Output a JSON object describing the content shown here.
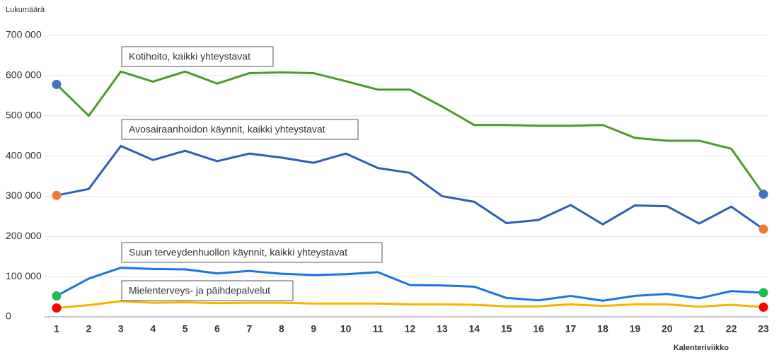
{
  "chart_data": {
    "type": "line",
    "y_label": "Lukumäärä",
    "x_label": "Kalenteriviikko",
    "x": [
      1,
      2,
      3,
      4,
      5,
      6,
      7,
      8,
      9,
      10,
      11,
      12,
      13,
      14,
      15,
      16,
      17,
      18,
      19,
      20,
      21,
      22,
      23
    ],
    "xlim": [
      1,
      23
    ],
    "xticks": [
      1,
      2,
      3,
      4,
      5,
      6,
      7,
      8,
      9,
      10,
      11,
      12,
      13,
      14,
      15,
      16,
      17,
      18,
      19,
      20,
      21,
      22,
      23
    ],
    "ylim": [
      0,
      700000
    ],
    "yticks": [
      0,
      {
        "value": 100000,
        "label": "100 000"
      },
      {
        "value": 200000,
        "label": "200 000"
      },
      {
        "value": 300000,
        "label": "300 000"
      },
      {
        "value": 400000,
        "label": "400 000"
      },
      {
        "value": 500000,
        "label": "500 000"
      },
      {
        "value": 600000,
        "label": "600 000"
      },
      {
        "value": 700000,
        "label": "700 000"
      }
    ],
    "grid": true,
    "series": [
      {
        "name": "Kotihoito, kaikki yhteystavat",
        "color": "#4e9a2a",
        "endpoint_color": "#4472c4",
        "values": [
          578000,
          500000,
          610000,
          585000,
          610000,
          580000,
          606000,
          608000,
          606000,
          586000,
          565000,
          565000,
          523000,
          477000,
          477000,
          475000,
          475000,
          477000,
          445000,
          438000,
          438000,
          418000,
          305000
        ]
      },
      {
        "name": "Avosairaanhoidon käynnit, kaikki yhteystavat",
        "color": "#2f5fb0",
        "endpoint_color": "#ed7d31",
        "values": [
          302000,
          318000,
          425000,
          390000,
          413000,
          387000,
          406000,
          396000,
          383000,
          406000,
          370000,
          358000,
          300000,
          286000,
          233000,
          241000,
          278000,
          230000,
          277000,
          275000,
          232000,
          274000,
          218000
        ]
      },
      {
        "name": "Suun terveydenhuollon käynnit, kaikki yhteystavat",
        "color": "#1a73e8",
        "endpoint_color": "#1db954",
        "values": [
          52000,
          95000,
          122000,
          119000,
          118000,
          108000,
          114000,
          107000,
          104000,
          106000,
          111000,
          79000,
          78000,
          75000,
          47000,
          41000,
          52000,
          40000,
          52000,
          57000,
          46000,
          64000,
          60000
        ]
      },
      {
        "name": "Mielenterveys- ja päihdepalvelut",
        "color": "#f4b400",
        "endpoint_color": "#ff0000",
        "values": [
          22000,
          29000,
          39000,
          35000,
          36000,
          34000,
          35000,
          35000,
          33000,
          33000,
          33000,
          31000,
          31000,
          30000,
          26000,
          26000,
          31000,
          27000,
          31000,
          31000,
          25000,
          30000,
          24000
        ]
      }
    ]
  }
}
